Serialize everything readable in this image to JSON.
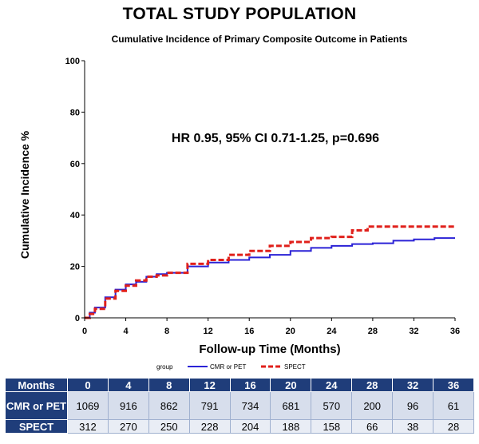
{
  "title": "TOTAL STUDY POPULATION",
  "subtitle": "Cumulative Incidence of Primary Composite Outcome in Patients",
  "colors": {
    "cmr_pet": "#2b22d6",
    "spect": "#e0201b",
    "table_header": "#1f3d7a"
  },
  "chart_data": {
    "type": "line",
    "title": "Cumulative Incidence of Primary Composite Outcome in Patients",
    "xlabel": "Follow-up Time (Months)",
    "ylabel": "Cumulative Incidence %",
    "xlim": [
      0,
      36
    ],
    "ylim": [
      0,
      100
    ],
    "xticks": [
      "0",
      "4",
      "8",
      "12",
      "16",
      "20",
      "24",
      "28",
      "32",
      "36"
    ],
    "yticks": [
      "0",
      "20",
      "40",
      "60",
      "80",
      "100"
    ],
    "annotation": "HR 0.95, 95% CI 0.71-1.25, p=0.696",
    "legend": {
      "title": "group",
      "position": "bottom"
    },
    "series": [
      {
        "name": "CMR or PET",
        "style": "solid",
        "x": [
          0,
          0.5,
          1,
          2,
          3,
          4,
          5,
          6,
          7,
          8,
          10,
          12,
          14,
          16,
          18,
          20,
          22,
          24,
          26,
          28,
          30,
          32,
          34,
          36
        ],
        "y": [
          0,
          2,
          4,
          8,
          11,
          13,
          14,
          16,
          17,
          17.5,
          20,
          21.5,
          22.5,
          23.5,
          24.5,
          26,
          27.2,
          28,
          28.7,
          29,
          30,
          30.5,
          31,
          31
        ]
      },
      {
        "name": "SPECT",
        "style": "dashed",
        "x": [
          0,
          0.5,
          1,
          2,
          3,
          4,
          5,
          6,
          7,
          8,
          10,
          12,
          14,
          16,
          18,
          20,
          22,
          24,
          26,
          27.5,
          30,
          32,
          34,
          36
        ],
        "y": [
          0,
          1.5,
          3.5,
          7.5,
          10.5,
          12.5,
          14.5,
          16,
          16.5,
          17.5,
          21,
          22.5,
          24.5,
          26,
          28,
          29.5,
          31,
          31.5,
          34,
          35.5,
          35.5,
          35.5,
          35.5,
          35.5
        ]
      }
    ]
  },
  "risk_table": {
    "header_label": "Months",
    "months": [
      "0",
      "4",
      "8",
      "12",
      "16",
      "20",
      "24",
      "28",
      "32",
      "36"
    ],
    "rows": [
      {
        "label": "CMR or PET",
        "values": [
          "1069",
          "916",
          "862",
          "791",
          "734",
          "681",
          "570",
          "200",
          "96",
          "61"
        ]
      },
      {
        "label": "SPECT",
        "values": [
          "312",
          "270",
          "250",
          "228",
          "204",
          "188",
          "158",
          "66",
          "38",
          "28"
        ]
      }
    ]
  }
}
